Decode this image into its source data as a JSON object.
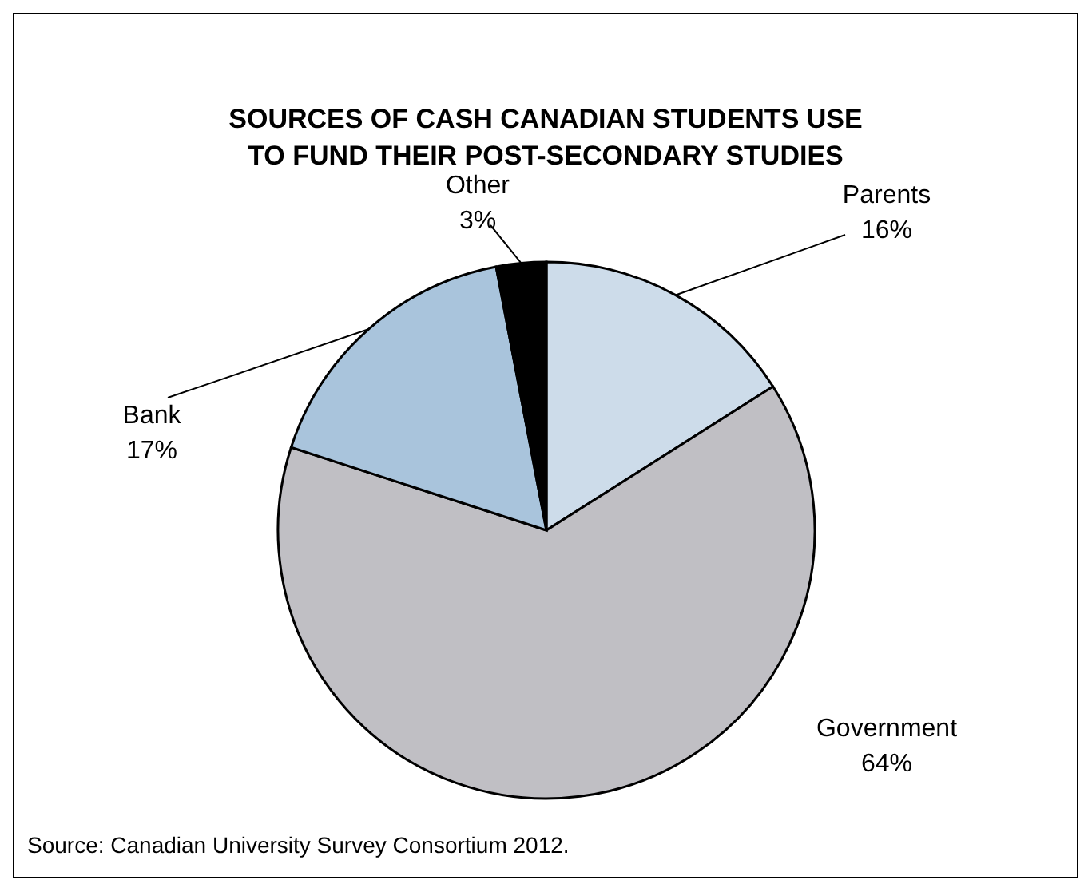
{
  "chart_data": {
    "type": "pie",
    "title": "SOURCES OF CASH CANADIAN STUDENTS USE\nTO FUND THEIR POST-SECONDARY STUDIES",
    "categories": [
      "Parents",
      "Government",
      "Bank",
      "Other"
    ],
    "values": [
      16,
      64,
      17,
      3
    ],
    "colors": [
      "#cddcea",
      "#c0bfc4",
      "#a9c4dc",
      "#000000"
    ],
    "value_labels": [
      "16%",
      "64%",
      "17%",
      "3%"
    ],
    "annotations": [
      "Source: Canadian University Survey Consortium 2012."
    ]
  }
}
